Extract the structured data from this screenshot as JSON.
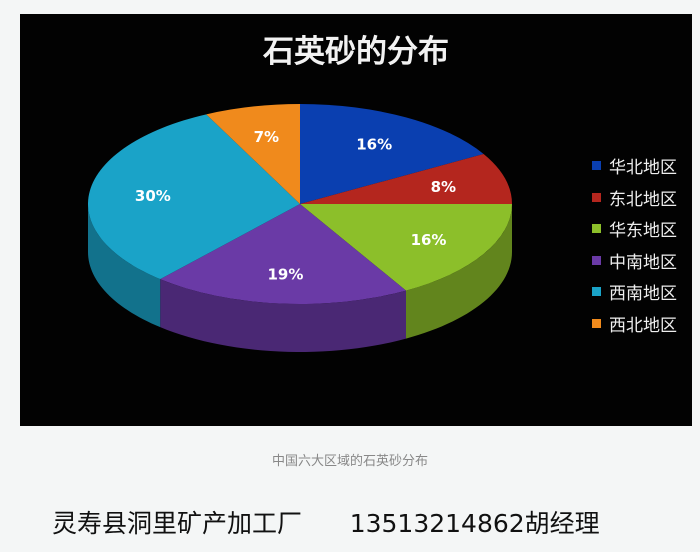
{
  "chart_data": {
    "type": "pie",
    "title": "石英砂的分布",
    "legend_position": "right",
    "three_d": true,
    "categories": [
      "华北地区",
      "东北地区",
      "华东地区",
      "中南地区",
      "西南地区",
      "西北地区"
    ],
    "values": [
      16,
      8,
      16,
      19,
      30,
      7
    ],
    "labels": [
      "16%",
      "8%",
      "16%",
      "19%",
      "30%",
      "7%"
    ],
    "colors": [
      "#0a3fb0",
      "#b4261e",
      "#8cbf2a",
      "#6a3aa6",
      "#1aa3c8",
      "#f08a1c"
    ]
  },
  "caption": "中国六大区域的石英砂分布",
  "footer": {
    "company": "灵寿县洞里矿产加工厂",
    "contact": "13513214862胡经理"
  }
}
